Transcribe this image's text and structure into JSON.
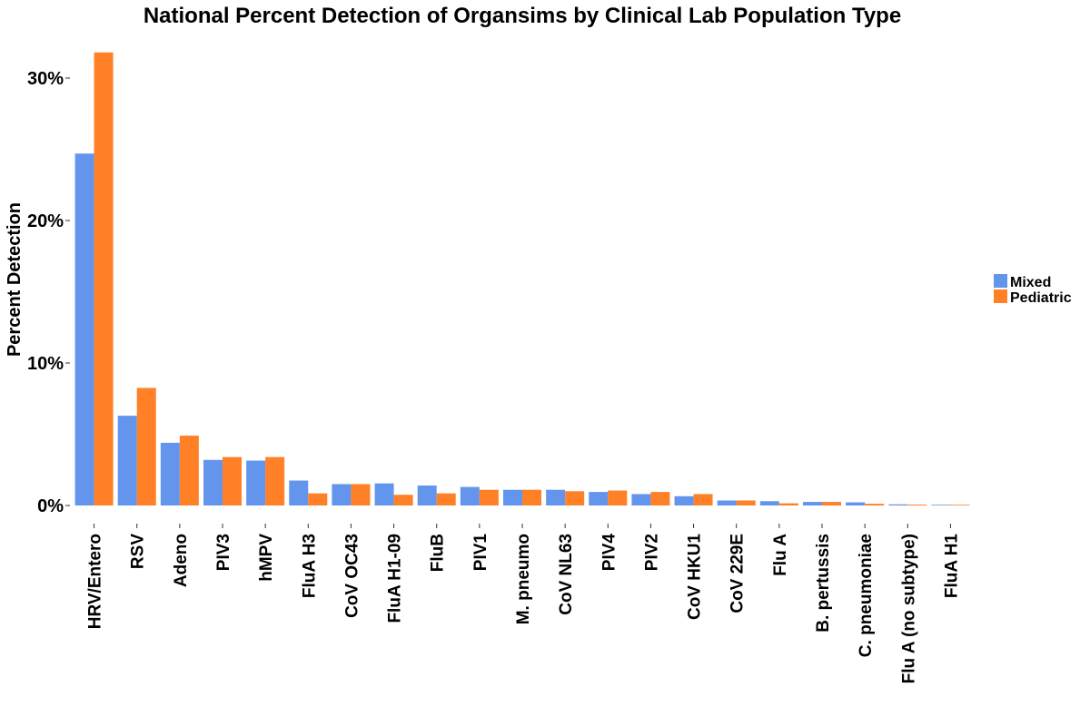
{
  "chart_data": {
    "type": "bar",
    "title": "National Percent Detection of Organsims by  Clinical Lab Population Type",
    "xlabel": "",
    "ylabel": "Percent Detection",
    "ylim": [
      0,
      32
    ],
    "yticks": [
      0,
      10,
      20,
      30
    ],
    "ytick_labels": [
      "0%",
      "10%",
      "20%",
      "30%"
    ],
    "grid": false,
    "legend_position": "right",
    "categories": [
      "HRV/Entero",
      "RSV",
      "Adeno",
      "PIV3",
      "hMPV",
      "FluA H3",
      "CoV OC43",
      "FluA H1-09",
      "FluB",
      "PIV1",
      "M. pneumo",
      "CoV NL63",
      "PIV4",
      "PIV2",
      "CoV HKU1",
      "CoV 229E",
      "Flu A",
      "B. pertussis",
      "C. pneumoniae",
      "Flu A (no subtype)",
      "FluA H1"
    ],
    "series": [
      {
        "name": "Mixed",
        "color": "#6495ED",
        "values": [
          24.7,
          6.3,
          4.4,
          3.2,
          3.15,
          1.75,
          1.5,
          1.55,
          1.4,
          1.3,
          1.1,
          1.1,
          0.95,
          0.8,
          0.65,
          0.35,
          0.3,
          0.25,
          0.22,
          0.08,
          0.05
        ]
      },
      {
        "name": "Pediatric",
        "color": "#FF8026",
        "values": [
          31.8,
          8.25,
          4.9,
          3.4,
          3.4,
          0.85,
          1.5,
          0.75,
          0.85,
          1.1,
          1.1,
          1.0,
          1.05,
          0.95,
          0.8,
          0.35,
          0.15,
          0.25,
          0.12,
          0.06,
          0.05
        ]
      }
    ]
  }
}
